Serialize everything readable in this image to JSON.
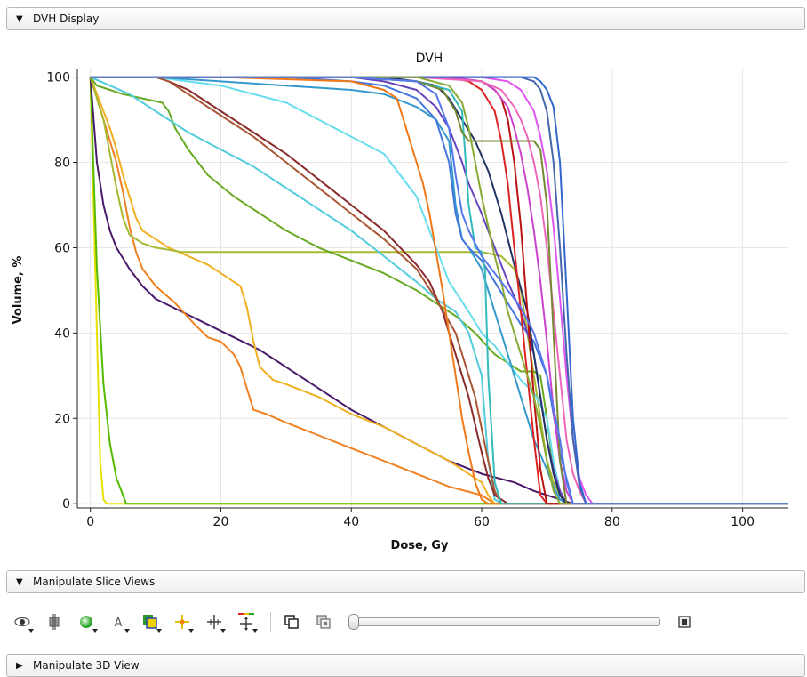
{
  "panels": {
    "dvh_display": {
      "label": "DVH Display",
      "expanded": true
    },
    "manipulate_slice_views": {
      "label": "Manipulate Slice Views",
      "expanded": true
    },
    "manipulate_3d_view": {
      "label": "Manipulate 3D View",
      "expanded": false
    }
  },
  "toolbar": {
    "icons": [
      "eye-icon",
      "fiducial-icon",
      "sphere-icon",
      "annotation-icon",
      "layers-icon",
      "crosshair-icon",
      "move-crosshair-icon",
      "pan-icon"
    ],
    "link_icon": "link-views-icon",
    "hot_link_icon": "hot-link-icon",
    "slider_value": 0,
    "fit_icon": "fit-icon"
  },
  "chart_data": {
    "type": "line",
    "title": "DVH",
    "xlabel": "Dose, Gy",
    "ylabel": "Volume, %",
    "xlim": [
      -2,
      107
    ],
    "ylim": [
      -1,
      102
    ],
    "xticks": [
      "0",
      "20",
      "40",
      "60",
      "80",
      "100"
    ],
    "yticks": [
      "0",
      "20",
      "40",
      "60",
      "80",
      "100"
    ],
    "grid": true,
    "legend": "none",
    "series": [
      {
        "color": "#e8e000",
        "x": [
          0,
          1,
          1.5,
          2,
          2.5,
          107
        ],
        "y": [
          100,
          40,
          10,
          1,
          0,
          0
        ]
      },
      {
        "color": "#55bb00",
        "x": [
          0,
          1,
          2,
          3,
          4,
          5,
          5.5,
          107
        ],
        "y": [
          100,
          55,
          28,
          14,
          6,
          2,
          0,
          0
        ]
      },
      {
        "color": "#4a1a6a",
        "x": [
          0,
          1,
          2,
          3,
          4,
          6,
          8,
          10,
          14,
          18,
          22,
          26,
          30,
          35,
          40,
          45,
          50,
          55,
          60,
          65,
          68,
          70,
          72,
          74,
          107
        ],
        "y": [
          100,
          80,
          70,
          64,
          60,
          55,
          51,
          48,
          45,
          42,
          39,
          36,
          32,
          27,
          22,
          18,
          14,
          10,
          7,
          5,
          3,
          2,
          1,
          0,
          0
        ]
      },
      {
        "color": "#f08020",
        "x": [
          0,
          2,
          3,
          4,
          5,
          6,
          7,
          8,
          10,
          13,
          16,
          18,
          20,
          22,
          23,
          24,
          25,
          27,
          30,
          35,
          40,
          45,
          50,
          55,
          60,
          61,
          62,
          107
        ],
        "y": [
          100,
          90,
          85,
          80,
          73,
          65,
          59,
          55,
          51,
          47,
          42,
          39,
          38,
          35,
          32,
          27,
          22,
          21,
          19,
          16,
          13,
          10,
          7,
          4,
          2,
          1,
          0,
          0
        ]
      },
      {
        "color": "#f0b020",
        "x": [
          0,
          2,
          3,
          4,
          5,
          6,
          7,
          8,
          10,
          12,
          15,
          18,
          20,
          22,
          23,
          24,
          25,
          26,
          28,
          30,
          35,
          40,
          45,
          50,
          55,
          60,
          61,
          62,
          107
        ],
        "y": [
          100,
          92,
          88,
          83,
          77,
          72,
          67,
          64,
          62,
          60,
          58,
          56,
          54,
          52,
          51,
          46,
          38,
          32,
          29,
          28,
          25,
          21,
          18,
          14,
          10,
          5,
          2,
          0,
          0
        ]
      },
      {
        "color": "#a8b830",
        "x": [
          0,
          2,
          3,
          4,
          5,
          6,
          8,
          10,
          14,
          20,
          30,
          40,
          50,
          55,
          60,
          63,
          65,
          66,
          67,
          68,
          69,
          70,
          71,
          72,
          73,
          107
        ],
        "y": [
          100,
          90,
          82,
          74,
          67,
          63,
          61,
          60,
          59,
          59,
          59,
          59,
          59,
          59,
          59,
          58,
          55,
          50,
          40,
          30,
          20,
          10,
          5,
          2,
          0,
          0
        ]
      },
      {
        "color": "#66aa22",
        "x": [
          0,
          1,
          3,
          5,
          8,
          11,
          12,
          13,
          15,
          18,
          22,
          26,
          30,
          35,
          40,
          45,
          50,
          53,
          56,
          59,
          62,
          64,
          66,
          68,
          69,
          70,
          71,
          72,
          73,
          107
        ],
        "y": [
          100,
          98,
          97,
          96,
          95,
          94,
          92,
          88,
          83,
          77,
          72,
          68,
          64,
          60,
          57,
          54,
          50,
          47,
          44,
          40,
          35,
          33,
          31,
          31,
          30,
          20,
          8,
          2,
          0,
          0
        ]
      },
      {
        "color": "#50ccdd",
        "x": [
          0,
          3,
          6,
          10,
          15,
          20,
          25,
          30,
          35,
          40,
          45,
          50,
          53,
          56,
          58,
          60,
          61,
          62,
          63,
          107
        ],
        "y": [
          100,
          98,
          96,
          92,
          87,
          83,
          79,
          74,
          69,
          64,
          58,
          52,
          48,
          45,
          40,
          30,
          10,
          1,
          0,
          0
        ]
      },
      {
        "color": "#66ddee",
        "x": [
          0,
          5,
          10,
          20,
          30,
          40,
          45,
          50,
          55,
          58,
          60,
          62,
          64,
          66,
          68,
          70,
          71,
          72,
          73,
          107
        ],
        "y": [
          100,
          100,
          100,
          98,
          94,
          86,
          82,
          72,
          52,
          45,
          40,
          37,
          33,
          29,
          26,
          20,
          10,
          3,
          0,
          0
        ]
      },
      {
        "color": "#8b2a2a",
        "x": [
          0,
          5,
          10,
          12,
          15,
          20,
          25,
          30,
          35,
          40,
          45,
          50,
          52,
          54,
          56,
          58,
          60,
          61,
          62,
          63,
          64,
          65,
          107
        ],
        "y": [
          100,
          100,
          100,
          99,
          97,
          92,
          87,
          82,
          76,
          70,
          64,
          56,
          52,
          45,
          35,
          25,
          12,
          6,
          2,
          1,
          0,
          0,
          0
        ]
      },
      {
        "color": "#aa5533",
        "x": [
          0,
          5,
          10,
          12,
          15,
          20,
          25,
          30,
          35,
          40,
          45,
          50,
          53,
          56,
          59,
          61,
          62,
          63,
          107
        ],
        "y": [
          100,
          100,
          100,
          99,
          96,
          91,
          86,
          80,
          74,
          68,
          62,
          55,
          48,
          40,
          25,
          10,
          3,
          0,
          0
        ]
      },
      {
        "color": "#3399cc",
        "x": [
          0,
          10,
          20,
          30,
          40,
          45,
          50,
          53,
          55,
          56,
          57,
          58,
          60,
          62,
          64,
          66,
          68,
          70,
          71,
          72,
          73,
          107
        ],
        "y": [
          100,
          100,
          99,
          98,
          97,
          96,
          93,
          90,
          85,
          70,
          62,
          60,
          55,
          45,
          35,
          25,
          15,
          8,
          4,
          1,
          0,
          0
        ]
      },
      {
        "color": "#4477dd",
        "x": [
          0,
          20,
          30,
          40,
          45,
          50,
          53,
          55,
          56,
          57,
          58,
          60,
          62,
          64,
          66,
          68,
          70,
          72,
          74,
          107
        ],
        "y": [
          100,
          100,
          100,
          99,
          98,
          95,
          90,
          80,
          68,
          62,
          60,
          57,
          52,
          47,
          42,
          38,
          30,
          12,
          0,
          0
        ]
      },
      {
        "color": "#6644bb",
        "x": [
          0,
          30,
          40,
          45,
          50,
          53,
          55,
          57,
          58,
          60,
          62,
          64,
          66,
          67,
          68,
          69,
          70,
          71,
          72,
          73,
          107
        ],
        "y": [
          100,
          100,
          100,
          99,
          97,
          93,
          88,
          80,
          75,
          68,
          60,
          52,
          45,
          40,
          35,
          25,
          15,
          8,
          3,
          0,
          0
        ]
      },
      {
        "color": "#223366",
        "x": [
          0,
          30,
          45,
          50,
          53,
          55,
          57,
          59,
          61,
          63,
          65,
          67,
          68,
          69,
          70,
          71,
          72,
          73,
          107
        ],
        "y": [
          100,
          100,
          100,
          99,
          98,
          95,
          90,
          85,
          78,
          68,
          56,
          45,
          35,
          25,
          15,
          7,
          2,
          0,
          0
        ]
      },
      {
        "color": "#f07818",
        "x": [
          0,
          20,
          40,
          45,
          47,
          48,
          49,
          50,
          51,
          52,
          54,
          55,
          56,
          57,
          58,
          59,
          60,
          61,
          107
        ],
        "y": [
          100,
          100,
          99,
          97,
          95,
          90,
          85,
          80,
          75,
          68,
          50,
          40,
          30,
          20,
          12,
          5,
          1,
          0,
          0
        ]
      },
      {
        "color": "#33bbbb",
        "x": [
          0,
          40,
          50,
          55,
          57,
          58,
          59,
          60,
          60.5,
          61,
          62,
          63,
          107
        ],
        "y": [
          100,
          100,
          99,
          97,
          92,
          70,
          60,
          59,
          55,
          30,
          5,
          0,
          0
        ]
      },
      {
        "color": "#dd2222",
        "x": [
          0,
          55,
          58,
          60,
          62,
          63,
          64,
          65,
          66,
          67,
          68,
          69,
          70,
          107
        ],
        "y": [
          100,
          100,
          99,
          97,
          92,
          85,
          75,
          60,
          45,
          30,
          15,
          2,
          0,
          0
        ]
      },
      {
        "color": "#bb1111",
        "x": [
          0,
          55,
          60,
          62,
          63,
          64,
          65,
          66,
          67,
          68,
          69,
          70,
          107
        ],
        "y": [
          100,
          100,
          99,
          97,
          95,
          90,
          80,
          65,
          45,
          25,
          8,
          0,
          0
        ]
      },
      {
        "color": "#cc44cc",
        "x": [
          0,
          55,
          60,
          62,
          64,
          65,
          66,
          67,
          68,
          69,
          70,
          71,
          72,
          73,
          74,
          107
        ],
        "y": [
          100,
          100,
          99,
          97,
          93,
          88,
          82,
          74,
          64,
          52,
          38,
          22,
          10,
          3,
          0,
          0
        ]
      },
      {
        "color": "#ee66bb",
        "x": [
          0,
          50,
          60,
          63,
          65,
          66,
          67,
          68,
          69,
          70,
          71,
          72,
          73,
          74,
          75,
          76,
          107
        ],
        "y": [
          100,
          100,
          99,
          97,
          93,
          90,
          86,
          80,
          72,
          60,
          45,
          30,
          15,
          7,
          3,
          0,
          0
        ]
      },
      {
        "color": "#dd55ee",
        "x": [
          0,
          60,
          64,
          66,
          68,
          69,
          70,
          71,
          72,
          73,
          74,
          75,
          76,
          77,
          107
        ],
        "y": [
          100,
          100,
          99,
          97,
          92,
          86,
          78,
          65,
          48,
          30,
          15,
          6,
          2,
          0,
          0
        ]
      },
      {
        "color": "#4466aa",
        "x": [
          0,
          66,
          68,
          69,
          70,
          71,
          72,
          73,
          74,
          75,
          76,
          107
        ],
        "y": [
          100,
          100,
          99,
          97,
          92,
          80,
          60,
          35,
          15,
          4,
          0,
          0
        ]
      },
      {
        "color": "#3366cc",
        "x": [
          0,
          60,
          68,
          69,
          70,
          71,
          72,
          73,
          74,
          75,
          76,
          107
        ],
        "y": [
          100,
          100,
          100,
          99,
          97,
          93,
          80,
          50,
          20,
          5,
          0,
          0
        ]
      },
      {
        "color": "#778833",
        "x": [
          0,
          40,
          50,
          54,
          56,
          57,
          58,
          60,
          63,
          66,
          68,
          69,
          70,
          71,
          72,
          73,
          107
        ],
        "y": [
          100,
          100,
          99,
          97,
          92,
          87,
          85,
          85,
          85,
          85,
          85,
          83,
          70,
          40,
          10,
          0,
          0
        ]
      },
      {
        "color": "#88aa33",
        "x": [
          0,
          50,
          55,
          57,
          58,
          59,
          60,
          61,
          62,
          63,
          64,
          65,
          66,
          67,
          68,
          69,
          70,
          71,
          72,
          107
        ],
        "y": [
          100,
          100,
          98,
          94,
          88,
          80,
          72,
          65,
          58,
          52,
          45,
          40,
          35,
          30,
          25,
          18,
          10,
          3,
          0,
          0
        ]
      },
      {
        "color": "#5577ee",
        "x": [
          0,
          40,
          50,
          53,
          55,
          56,
          57,
          58,
          60,
          62,
          64,
          66,
          68,
          70,
          72,
          73,
          74,
          107
        ],
        "y": [
          100,
          100,
          99,
          96,
          88,
          77,
          68,
          64,
          58,
          54,
          50,
          46,
          40,
          30,
          15,
          5,
          0,
          0
        ]
      }
    ]
  }
}
